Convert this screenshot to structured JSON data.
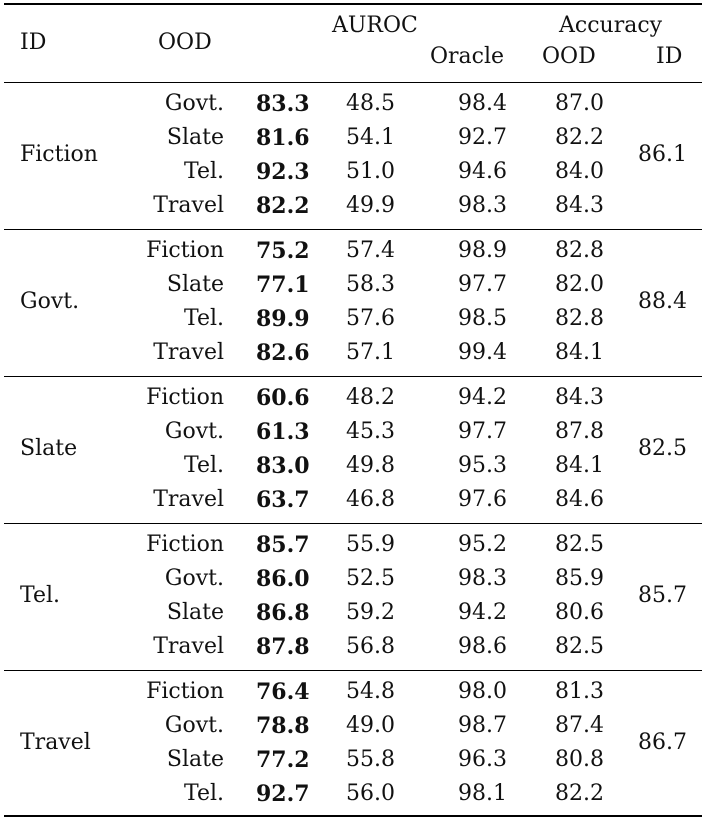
{
  "header": {
    "id": "ID",
    "ood": "OOD",
    "auroc": "AUROC",
    "accuracy": "Accuracy",
    "oracle": "Oracle",
    "acc_ood": "OOD",
    "acc_id": "ID"
  },
  "groups": [
    {
      "id": "Fiction",
      "id_acc": "86.1",
      "rows": [
        {
          "ood": "Govt.",
          "bold": "83.3",
          "auroc2": "48.5",
          "oracle": "98.4",
          "acc_ood": "87.0"
        },
        {
          "ood": "Slate",
          "bold": "81.6",
          "auroc2": "54.1",
          "oracle": "92.7",
          "acc_ood": "82.2"
        },
        {
          "ood": "Tel.",
          "bold": "92.3",
          "auroc2": "51.0",
          "oracle": "94.6",
          "acc_ood": "84.0"
        },
        {
          "ood": "Travel",
          "bold": "82.2",
          "auroc2": "49.9",
          "oracle": "98.3",
          "acc_ood": "84.3"
        }
      ]
    },
    {
      "id": "Govt.",
      "id_acc": "88.4",
      "rows": [
        {
          "ood": "Fiction",
          "bold": "75.2",
          "auroc2": "57.4",
          "oracle": "98.9",
          "acc_ood": "82.8"
        },
        {
          "ood": "Slate",
          "bold": "77.1",
          "auroc2": "58.3",
          "oracle": "97.7",
          "acc_ood": "82.0"
        },
        {
          "ood": "Tel.",
          "bold": "89.9",
          "auroc2": "57.6",
          "oracle": "98.5",
          "acc_ood": "82.8"
        },
        {
          "ood": "Travel",
          "bold": "82.6",
          "auroc2": "57.1",
          "oracle": "99.4",
          "acc_ood": "84.1"
        }
      ]
    },
    {
      "id": "Slate",
      "id_acc": "82.5",
      "rows": [
        {
          "ood": "Fiction",
          "bold": "60.6",
          "auroc2": "48.2",
          "oracle": "94.2",
          "acc_ood": "84.3"
        },
        {
          "ood": "Govt.",
          "bold": "61.3",
          "auroc2": "45.3",
          "oracle": "97.7",
          "acc_ood": "87.8"
        },
        {
          "ood": "Tel.",
          "bold": "83.0",
          "auroc2": "49.8",
          "oracle": "95.3",
          "acc_ood": "84.1"
        },
        {
          "ood": "Travel",
          "bold": "63.7",
          "auroc2": "46.8",
          "oracle": "97.6",
          "acc_ood": "84.6"
        }
      ]
    },
    {
      "id": "Tel.",
      "id_acc": "85.7",
      "rows": [
        {
          "ood": "Fiction",
          "bold": "85.7",
          "auroc2": "55.9",
          "oracle": "95.2",
          "acc_ood": "82.5"
        },
        {
          "ood": "Govt.",
          "bold": "86.0",
          "auroc2": "52.5",
          "oracle": "98.3",
          "acc_ood": "85.9"
        },
        {
          "ood": "Slate",
          "bold": "86.8",
          "auroc2": "59.2",
          "oracle": "94.2",
          "acc_ood": "80.6"
        },
        {
          "ood": "Travel",
          "bold": "87.8",
          "auroc2": "56.8",
          "oracle": "98.6",
          "acc_ood": "82.5"
        }
      ]
    },
    {
      "id": "Travel",
      "id_acc": "86.7",
      "rows": [
        {
          "ood": "Fiction",
          "bold": "76.4",
          "auroc2": "54.8",
          "oracle": "98.0",
          "acc_ood": "81.3"
        },
        {
          "ood": "Govt.",
          "bold": "78.8",
          "auroc2": "49.0",
          "oracle": "98.7",
          "acc_ood": "87.4"
        },
        {
          "ood": "Slate",
          "bold": "77.2",
          "auroc2": "55.8",
          "oracle": "96.3",
          "acc_ood": "80.8"
        },
        {
          "ood": "Tel.",
          "bold": "92.7",
          "auroc2": "56.0",
          "oracle": "98.1",
          "acc_ood": "82.2"
        }
      ]
    }
  ]
}
